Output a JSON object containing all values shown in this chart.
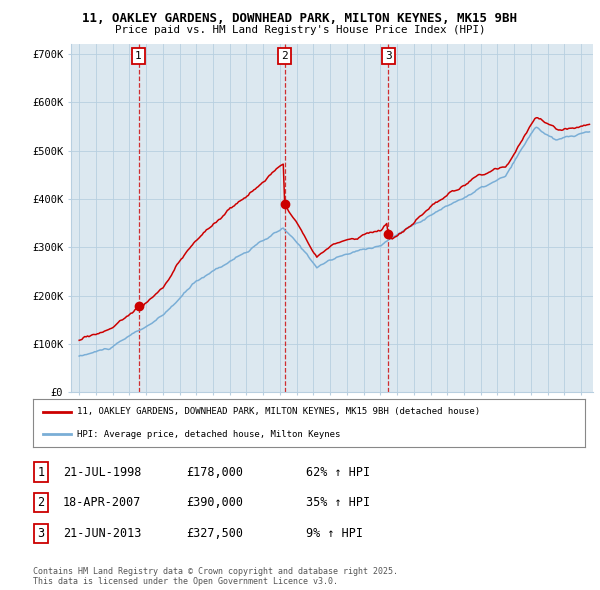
{
  "title_line1": "11, OAKLEY GARDENS, DOWNHEAD PARK, MILTON KEYNES, MK15 9BH",
  "title_line2": "Price paid vs. HM Land Registry's House Price Index (HPI)",
  "background_color": "#ffffff",
  "plot_bg_color": "#dce8f0",
  "grid_color": "#b8cfe0",
  "red_color": "#cc0000",
  "blue_color": "#7aaed6",
  "sale_times": [
    1998.55,
    2007.3,
    2013.47
  ],
  "sale_prices": [
    178000,
    390000,
    327500
  ],
  "sale_labels": [
    "1",
    "2",
    "3"
  ],
  "ylim": [
    0,
    720000
  ],
  "xlim": [
    1994.5,
    2025.7
  ],
  "yticks": [
    0,
    100000,
    200000,
    300000,
    400000,
    500000,
    600000,
    700000
  ],
  "ytick_labels": [
    "£0",
    "£100K",
    "£200K",
    "£300K",
    "£400K",
    "£500K",
    "£600K",
    "£700K"
  ],
  "xticks": [
    1995,
    1996,
    1997,
    1998,
    1999,
    2000,
    2001,
    2002,
    2003,
    2004,
    2005,
    2006,
    2007,
    2008,
    2009,
    2010,
    2011,
    2012,
    2013,
    2014,
    2015,
    2016,
    2017,
    2018,
    2019,
    2020,
    2021,
    2022,
    2023,
    2024,
    2025
  ],
  "legend_red": "11, OAKLEY GARDENS, DOWNHEAD PARK, MILTON KEYNES, MK15 9BH (detached house)",
  "legend_blue": "HPI: Average price, detached house, Milton Keynes",
  "table_rows": [
    {
      "num": "1",
      "date": "21-JUL-1998",
      "price": "£178,000",
      "pct": "62% ↑ HPI"
    },
    {
      "num": "2",
      "date": "18-APR-2007",
      "price": "£390,000",
      "pct": "35% ↑ HPI"
    },
    {
      "num": "3",
      "date": "21-JUN-2013",
      "price": "£327,500",
      "pct": "9% ↑ HPI"
    }
  ],
  "footnote": "Contains HM Land Registry data © Crown copyright and database right 2025.\nThis data is licensed under the Open Government Licence v3.0."
}
